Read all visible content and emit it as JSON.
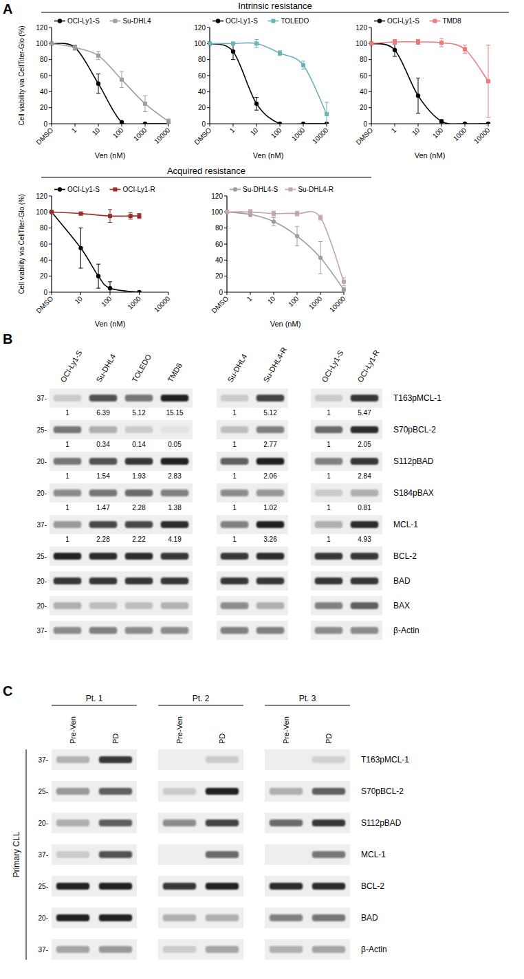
{
  "panel_labels": {
    "a": "A",
    "b": "B",
    "c": "C"
  },
  "section_titles": [
    "Intrinsic resistance",
    "Acquired resistance"
  ],
  "chart_data": [
    {
      "type": "line",
      "y_label": "Cell viability via CellTiter-Glo (%)",
      "x_label": "Ven (nM)",
      "log": "x",
      "legend": "top",
      "xlim": [
        0.1,
        10000
      ],
      "xticks": [
        {
          "value": 0.1,
          "label": "DMSO"
        },
        1,
        10,
        100,
        1000,
        10000
      ],
      "ylim": [
        0,
        120
      ],
      "yticks": [
        0,
        20,
        40,
        60,
        80,
        100,
        120
      ],
      "series": [
        {
          "name": "OCI-Ly1-S",
          "color": "#000000",
          "marker": "circle",
          "x": [
            0.1,
            1,
            10,
            100,
            1000,
            10000
          ],
          "values": [
            100,
            95,
            50,
            2,
            0,
            0
          ],
          "errors": [
            0,
            3,
            12,
            1,
            0,
            0
          ]
        },
        {
          "name": "Su-DHL4",
          "color": "#9e9e9e",
          "marker": "square",
          "x": [
            0.1,
            1,
            10,
            100,
            1000,
            10000
          ],
          "values": [
            100,
            95,
            85,
            55,
            25,
            3
          ],
          "errors": [
            0,
            3,
            5,
            10,
            10,
            3
          ]
        }
      ]
    },
    {
      "type": "line",
      "x_label": "Ven (nM)",
      "log": "x",
      "legend": "top",
      "xlim": [
        0.1,
        10000
      ],
      "xticks": [
        {
          "value": 0.1,
          "label": "DMSO"
        },
        1,
        10,
        100,
        1000,
        10000
      ],
      "ylim": [
        0,
        120
      ],
      "yticks": [
        0,
        20,
        40,
        60,
        80,
        100,
        120
      ],
      "series": [
        {
          "name": "OCI-Ly1-S",
          "color": "#000000",
          "marker": "circle",
          "x": [
            0.1,
            1,
            10,
            100,
            1000,
            10000
          ],
          "values": [
            100,
            90,
            25,
            0,
            0,
            0
          ],
          "errors": [
            0,
            10,
            8,
            0,
            0,
            0
          ]
        },
        {
          "name": "TOLEDO",
          "color": "#6bb3b8",
          "marker": "square",
          "x": [
            0.1,
            1,
            10,
            100,
            1000,
            10000
          ],
          "values": [
            100,
            100,
            100,
            88,
            73,
            12
          ],
          "errors": [
            0,
            0,
            5,
            3,
            5,
            15
          ]
        }
      ]
    },
    {
      "type": "line",
      "x_label": "Ven (nM)",
      "log": "x",
      "legend": "top",
      "xlim": [
        0.1,
        10000
      ],
      "xticks": [
        {
          "value": 0.1,
          "label": "DMSO"
        },
        1,
        10,
        100,
        1000,
        10000
      ],
      "ylim": [
        0,
        120
      ],
      "yticks": [
        0,
        20,
        40,
        60,
        80,
        100,
        120
      ],
      "series": [
        {
          "name": "OCI-Ly1-S",
          "color": "#000000",
          "marker": "circle",
          "x": [
            0.1,
            1,
            10,
            100,
            1000,
            10000
          ],
          "values": [
            100,
            92,
            35,
            3,
            0,
            0
          ],
          "errors": [
            0,
            8,
            22,
            2,
            0,
            0
          ]
        },
        {
          "name": "TMD8",
          "color": "#f07a7a",
          "marker": "square",
          "x": [
            0.1,
            1,
            10,
            100,
            1000,
            10000
          ],
          "values": [
            100,
            102,
            102,
            101,
            93,
            53
          ],
          "errors": [
            0,
            3,
            3,
            5,
            5,
            45
          ]
        }
      ]
    },
    {
      "type": "line",
      "y_label": "Cell viability via CellTiter-Glo (%)",
      "x_label": "Ven (nM)",
      "log": "x",
      "legend": "top",
      "xlim": [
        1,
        10000
      ],
      "xticks": [
        {
          "value": 1,
          "label": "DMSO"
        },
        10,
        100,
        1000,
        10000
      ],
      "ylim": [
        0,
        120
      ],
      "yticks": [
        0,
        20,
        40,
        60,
        80,
        100,
        120
      ],
      "series": [
        {
          "name": "OCI-Ly1-S",
          "color": "#000000",
          "marker": "circle",
          "x": [
            1,
            10,
            40,
            100,
            1000
          ],
          "values": [
            100,
            55,
            20,
            5,
            0
          ],
          "errors": [
            0,
            25,
            15,
            8,
            0
          ]
        },
        {
          "name": "OCI-Ly1-R",
          "color": "#9b2d2d",
          "marker": "square",
          "x": [
            1,
            10,
            100,
            500,
            1000
          ],
          "values": [
            100,
            98,
            95,
            95,
            95
          ],
          "errors": [
            0,
            2,
            8,
            4,
            3
          ]
        }
      ]
    },
    {
      "type": "line",
      "x_label": "Ven (nM)",
      "log": "x",
      "legend": "top",
      "xlim": [
        0.1,
        10000
      ],
      "xticks": [
        {
          "value": 0.1,
          "label": "DMSO"
        },
        1,
        10,
        100,
        1000,
        10000
      ],
      "ylim": [
        0,
        120
      ],
      "yticks": [
        0,
        20,
        40,
        60,
        80,
        100,
        120
      ],
      "series": [
        {
          "name": "Su-DHL4-S",
          "color": "#9e9e9e",
          "marker": "circle",
          "x": [
            0.1,
            1,
            10,
            100,
            1000,
            10000
          ],
          "values": [
            100,
            97,
            88,
            70,
            43,
            3
          ],
          "errors": [
            0,
            3,
            5,
            12,
            20,
            3
          ]
        },
        {
          "name": "Su-DHL4-R",
          "color": "#c4a4a8",
          "marker": "square",
          "x": [
            0.1,
            1,
            10,
            100,
            1000,
            10000
          ],
          "values": [
            100,
            100,
            98,
            98,
            93,
            13
          ],
          "errors": [
            0,
            3,
            3,
            3,
            3,
            5
          ]
        }
      ]
    }
  ],
  "blot_b": {
    "row_labels": [
      "T163pMCL-1",
      "S70pBCL-2",
      "S112pBAD",
      "S184pBAX",
      "MCL-1",
      "BCL-2",
      "BAD",
      "BAX",
      "β-Actin"
    ],
    "mw_labels": [
      "37-",
      "25-",
      "20-",
      "20-",
      "37-",
      "25-",
      "20-",
      "20-",
      "37-"
    ],
    "groups": [
      {
        "lanes": [
          "OCI-Ly1-S",
          "Su-DHL4",
          "TOLEDO",
          "TMD8"
        ],
        "bands": [
          [
            0.15,
            0.7,
            0.55,
            0.95
          ],
          [
            0.55,
            0.3,
            0.15,
            0.05
          ],
          [
            0.55,
            0.7,
            0.85,
            0.95
          ],
          [
            0.45,
            0.55,
            0.6,
            0.5
          ],
          [
            0.4,
            0.75,
            0.75,
            0.9
          ],
          [
            0.95,
            0.9,
            0.9,
            0.85
          ],
          [
            0.85,
            0.85,
            0.85,
            0.85
          ],
          [
            0.3,
            0.2,
            0.2,
            0.25
          ],
          [
            0.45,
            0.5,
            0.45,
            0.45
          ]
        ],
        "quant": [
          [
            1,
            6.39,
            5.12,
            15.15
          ],
          [
            1,
            0.34,
            0.14,
            0.05
          ],
          [
            1,
            1.54,
            1.93,
            2.83
          ],
          [
            1,
            1.47,
            2.28,
            1.38
          ],
          [
            1,
            2.28,
            2.22,
            4.19
          ]
        ]
      },
      {
        "lanes": [
          "Su-DHL4",
          "Su-DHL4-R"
        ],
        "bands": [
          [
            0.15,
            0.8
          ],
          [
            0.2,
            0.5
          ],
          [
            0.65,
            0.95
          ],
          [
            0.45,
            0.4
          ],
          [
            0.5,
            0.95
          ],
          [
            0.85,
            0.9
          ],
          [
            0.85,
            0.85
          ],
          [
            0.45,
            0.3
          ],
          [
            0.5,
            0.5
          ]
        ],
        "quant": [
          [
            1,
            5.12
          ],
          [
            1,
            2.77
          ],
          [
            1,
            2.06
          ],
          [
            1,
            1.02
          ],
          [
            1,
            3.26
          ]
        ]
      },
      {
        "lanes": [
          "OCI-Ly1-S",
          "OCI-Ly1-R"
        ],
        "bands": [
          [
            0.15,
            0.85
          ],
          [
            0.6,
            0.9
          ],
          [
            0.5,
            0.85
          ],
          [
            0.15,
            0.3
          ],
          [
            0.3,
            0.9
          ],
          [
            0.85,
            0.85
          ],
          [
            0.85,
            0.85
          ],
          [
            0.5,
            0.65
          ],
          [
            0.45,
            0.45
          ]
        ],
        "quant": [
          [
            1,
            5.47
          ],
          [
            1,
            2.05
          ],
          [
            1,
            2.84
          ],
          [
            1,
            0.81
          ],
          [
            1,
            4.93
          ]
        ]
      }
    ]
  },
  "blot_c": {
    "side_label": "Primary CLL",
    "row_labels": [
      "T163pMCL-1",
      "S70pBCL-2",
      "S112pBAD",
      "MCL-1",
      "BCL-2",
      "BAD",
      "β-Actin"
    ],
    "mw_labels": [
      "37-",
      "25-",
      "20-",
      "37-",
      "25-",
      "20-",
      "37-"
    ],
    "groups": [
      {
        "title": "Pt. 1",
        "lanes": [
          "Pre-Ven",
          "PD"
        ],
        "bands": [
          [
            0.25,
            0.85
          ],
          [
            0.4,
            0.65
          ],
          [
            0.3,
            0.65
          ],
          [
            0.15,
            0.7
          ],
          [
            0.95,
            0.95
          ],
          [
            0.95,
            0.95
          ],
          [
            0.35,
            0.4
          ]
        ]
      },
      {
        "title": "Pt. 2",
        "lanes": [
          "Pre-Ven",
          "PD"
        ],
        "bands": [
          [
            0,
            0.15
          ],
          [
            0.15,
            0.95
          ],
          [
            0.45,
            0.8
          ],
          [
            0,
            0.6
          ],
          [
            0.85,
            0.95
          ],
          [
            0.3,
            0.3
          ],
          [
            0.15,
            0.35
          ]
        ]
      },
      {
        "title": "Pt. 3",
        "lanes": [
          "Pre-Ven",
          "PD"
        ],
        "bands": [
          [
            0,
            0.12
          ],
          [
            0.3,
            0.65
          ],
          [
            0.6,
            0.85
          ],
          [
            0,
            0.55
          ],
          [
            0.9,
            0.9
          ],
          [
            0.5,
            0.55
          ],
          [
            0.3,
            0.35
          ]
        ]
      }
    ]
  }
}
